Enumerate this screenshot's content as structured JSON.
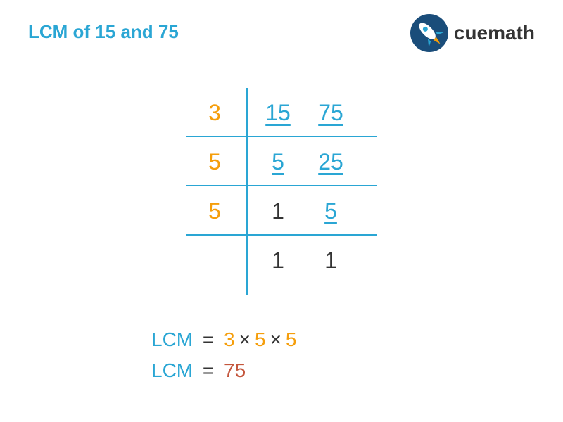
{
  "title": "LCM of 15 and 75",
  "logo": {
    "text": "cuemath"
  },
  "colors": {
    "title": "#2aa6d4",
    "orange": "#f59e0b",
    "teal": "#2aa6d4",
    "black": "#333333",
    "rust": "#c4563c",
    "line": "#2aa6d4"
  },
  "division": {
    "rows": [
      {
        "divisor": "3",
        "n1": "15",
        "n2": "75",
        "n1_underline": true,
        "n2_underline": true,
        "n1_color": "#2aa6d4",
        "n2_color": "#2aa6d4",
        "has_hline": true
      },
      {
        "divisor": "5",
        "n1": "5",
        "n2": "25",
        "n1_underline": true,
        "n2_underline": true,
        "n1_color": "#2aa6d4",
        "n2_color": "#2aa6d4",
        "has_hline": true
      },
      {
        "divisor": "5",
        "n1": "1",
        "n2": "5",
        "n1_underline": false,
        "n2_underline": true,
        "n1_color": "#333333",
        "n2_color": "#2aa6d4",
        "has_hline": true
      },
      {
        "divisor": "",
        "n1": "1",
        "n2": "1",
        "n1_underline": false,
        "n2_underline": false,
        "n1_color": "#333333",
        "n2_color": "#333333",
        "has_hline": false
      }
    ],
    "divisor_color": "#f59e0b"
  },
  "answers": {
    "label": "LCM",
    "label_color": "#2aa6d4",
    "eq": "=",
    "eq_color": "#333333",
    "mult": "×",
    "mult_color": "#333333",
    "factors": [
      "3",
      "5",
      "5"
    ],
    "factor_color": "#f59e0b",
    "result": "75",
    "result_color": "#c4563c"
  }
}
